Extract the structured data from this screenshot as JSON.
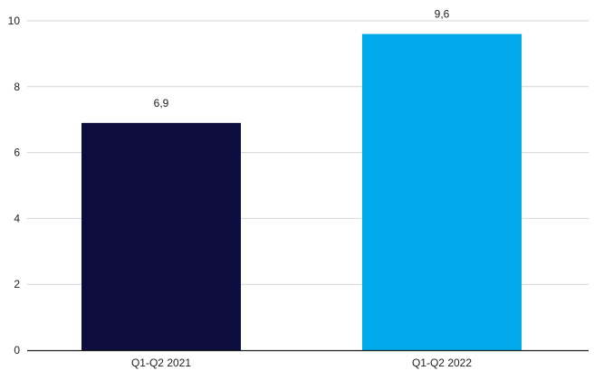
{
  "chart_data": {
    "type": "bar",
    "categories": [
      "Q1-Q2 2021",
      "Q1-Q2 2022"
    ],
    "values": [
      6.9,
      9.6
    ],
    "data_labels": [
      "6,9",
      "9,6"
    ],
    "bar_colors": [
      "#0c0c3e",
      "#00aaea"
    ],
    "y_ticks": [
      0,
      2,
      4,
      6,
      8,
      10
    ],
    "ylim": [
      0,
      10
    ],
    "grid": true,
    "title": "",
    "xlabel": "",
    "ylabel": ""
  }
}
